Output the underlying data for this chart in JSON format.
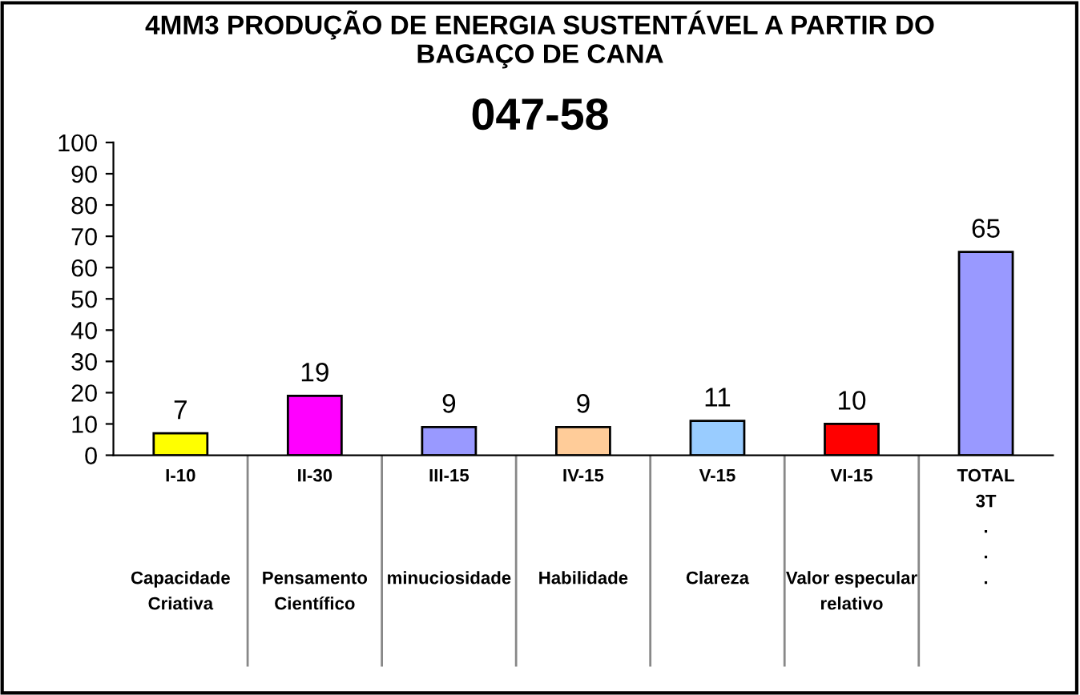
{
  "chart_data": {
    "type": "bar",
    "title": "4MM3 PRODUÇÃO DE ENERGIA SUSTENTÁVEL A PARTIR DO\nBAGAÇO DE CANA",
    "subtitle": "047-58",
    "categories": [
      "I-10\n\n\n\nCapacidade\nCriativa",
      "II-30\n\n\n\nPensamento\nCientífico",
      "III-15\n\n\n\nminuciosidade",
      "IV-15\n\n\n\nHabilidade",
      "V-15\n\n\n\nClareza",
      "VI-15\n\n\n\nValor especular\nrelativo",
      "TOTAL\n3T\n.\n.\n."
    ],
    "values": [
      7,
      19,
      9,
      9,
      11,
      10,
      65
    ],
    "colors": [
      "#ffff00",
      "#ff00ff",
      "#9999ff",
      "#ffcc99",
      "#99ccff",
      "#ff0000",
      "#9999ff"
    ],
    "ylim": [
      0,
      100
    ],
    "yticks": [
      0,
      10,
      20,
      30,
      40,
      50,
      60,
      70,
      80,
      90,
      100
    ],
    "data_labels": true,
    "grid": false,
    "legend": false
  }
}
